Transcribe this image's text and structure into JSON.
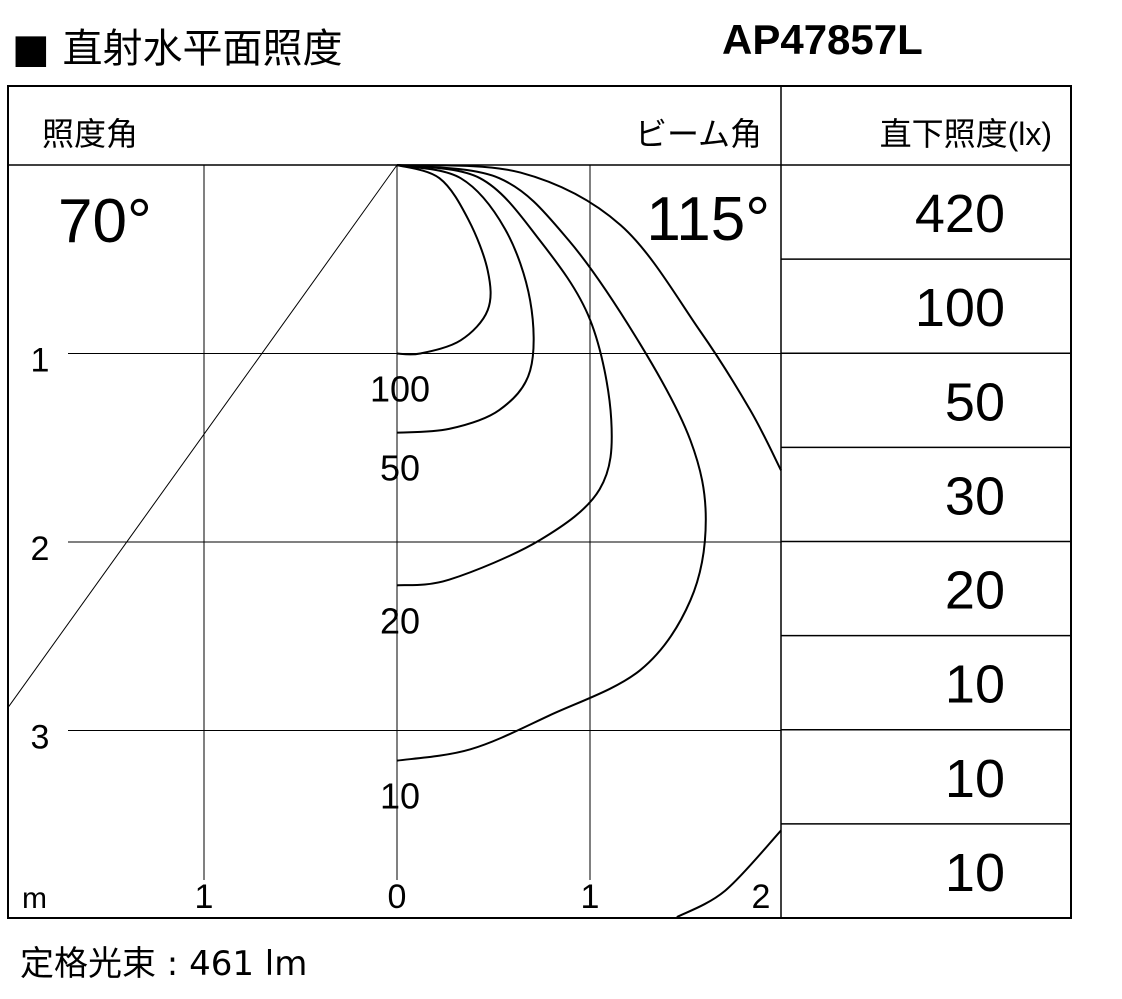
{
  "title": "■ 直射水平面照度",
  "model": "AP47857L",
  "footer": "定格光束 : 461 lm",
  "chart_data": {
    "type": "isolux",
    "header": {
      "left": "照度角",
      "center_right": "ビーム角",
      "right": "直下照度(lx)"
    },
    "illuminance_angle": "70°",
    "beam_angle": "115°",
    "unit_label": "m",
    "x_ticks": [
      "1",
      "0",
      "1",
      "2"
    ],
    "x_tick_values": [
      -1,
      0,
      1,
      2
    ],
    "y_ticks": [
      "1",
      "2",
      "3"
    ],
    "y_tick_values": [
      1,
      2,
      3
    ],
    "xlim": [
      -2,
      2
    ],
    "ylim": [
      0,
      4
    ],
    "grid": true,
    "direct_illuminance": [
      "420",
      "100",
      "50",
      "30",
      "20",
      "10",
      "10",
      "10"
    ],
    "beam_half_angle_deg": 35,
    "contours": [
      {
        "label": "100",
        "points": [
          [
            0,
            0
          ],
          [
            0.22,
            0.07
          ],
          [
            0.37,
            0.29
          ],
          [
            0.47,
            0.56
          ],
          [
            0.47,
            0.77
          ],
          [
            0.33,
            0.93
          ],
          [
            0.12,
            1.0
          ],
          [
            0,
            1.0
          ]
        ]
      },
      {
        "label": "50",
        "points": [
          [
            0,
            0
          ],
          [
            0.33,
            0.07
          ],
          [
            0.56,
            0.34
          ],
          [
            0.69,
            0.72
          ],
          [
            0.69,
            1.09
          ],
          [
            0.53,
            1.3
          ],
          [
            0.27,
            1.4
          ],
          [
            0,
            1.42
          ]
        ]
      },
      {
        "label": "20",
        "points": [
          [
            0,
            0
          ],
          [
            0.43,
            0.07
          ],
          [
            0.74,
            0.4
          ],
          [
            1.0,
            0.82
          ],
          [
            1.11,
            1.35
          ],
          [
            1.05,
            1.72
          ],
          [
            0.74,
            1.99
          ],
          [
            0.27,
            2.2
          ],
          [
            0,
            2.23
          ]
        ]
      },
      {
        "label": "10",
        "points": [
          [
            0,
            0
          ],
          [
            0.53,
            0.07
          ],
          [
            0.89,
            0.4
          ],
          [
            1.26,
            0.95
          ],
          [
            1.52,
            1.46
          ],
          [
            1.6,
            1.88
          ],
          [
            1.52,
            2.31
          ],
          [
            1.26,
            2.68
          ],
          [
            0.79,
            2.92
          ],
          [
            0.38,
            3.1
          ],
          [
            0,
            3.16
          ]
        ]
      },
      {
        "label": "",
        "points": [
          [
            0,
            0
          ],
          [
            0.64,
            0.04
          ],
          [
            1.16,
            0.32
          ],
          [
            1.57,
            0.88
          ],
          [
            1.83,
            1.3
          ],
          [
            1.99,
            1.62
          ]
        ]
      },
      {
        "label": "",
        "points": [
          [
            1.45,
            3.99
          ],
          [
            1.7,
            3.85
          ],
          [
            1.99,
            3.53
          ]
        ]
      }
    ]
  }
}
